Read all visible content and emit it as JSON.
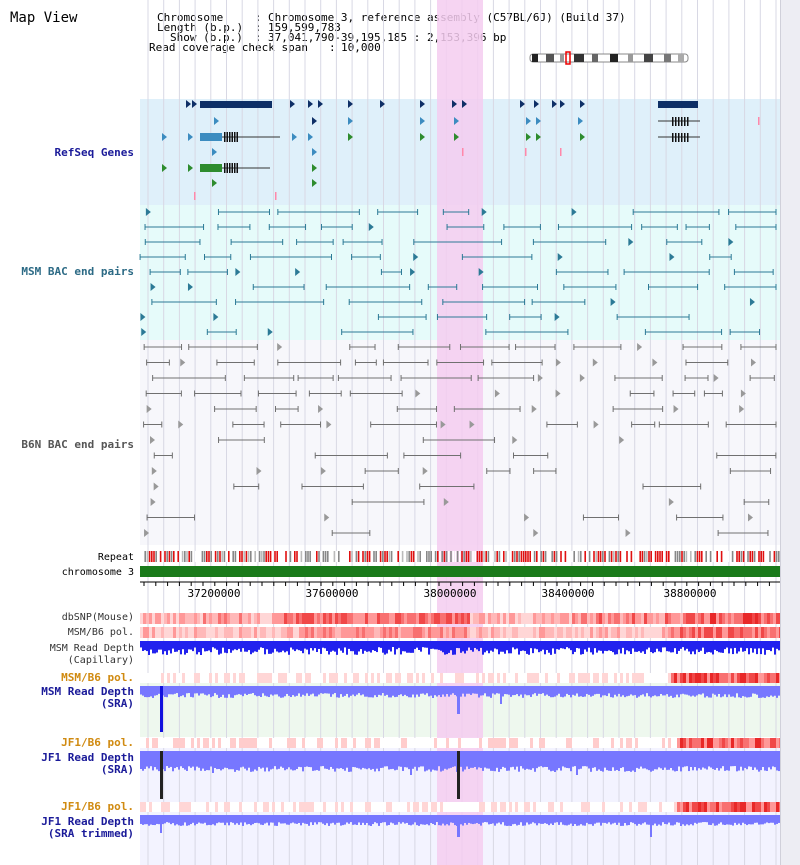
{
  "title": "Map View",
  "header": {
    "chromosome_key": "Chromosome",
    "chromosome_value": "Chromosome 3, reference assembly (C57BL/6J) (Build 37)",
    "length_key": "Length (b.p.)",
    "length_value": "159,599,783",
    "show_key": "Show (b.p.)",
    "show_value": "37,041,790-39,195,185 : 2,153,396 bp",
    "coverage_key": "Read coverage check span",
    "coverage_value": "10,000"
  },
  "tracks": {
    "refseq": "RefSeq Genes",
    "msm_bac": "MSM BAC end pairs",
    "b6n_bac": "B6N BAC end pairs",
    "repeat": "Repeat",
    "chromosome": "chromosome 3",
    "dbsnp": "dbSNP(Mouse)",
    "msm_b6_pol_1": "MSM/B6 pol.",
    "msm_depth_cap_1": "MSM Read Depth",
    "msm_depth_cap_2": "(Capillary)",
    "msm_b6_pol_2": "MSM/B6 pol.",
    "msm_depth_sra_1": "MSM Read Depth",
    "msm_depth_sra_2": "(SRA)",
    "jf1_b6_pol_1": "JF1/B6 pol.",
    "jf1_depth_sra_1": "JF1 Read Depth",
    "jf1_depth_sra_2": "(SRA)",
    "jf1_b6_pol_2": "JF1/B6 pol.",
    "jf1_depth_trim_1": "JF1 Read Depth",
    "jf1_depth_trim_2": "(SRA trimmed)"
  },
  "axis": {
    "ticks": [
      "37200000",
      "37600000",
      "38000000",
      "38400000",
      "38800000"
    ]
  },
  "colors": {
    "refseq_bg": "#dff0fa",
    "msm_bg": "#e6fbfa",
    "b6n_bg": "#f7f7fb",
    "highlight": "#f5cdf0",
    "chromosome": "#1a7a1a",
    "refseq_dark": "#0e2f66",
    "refseq_blue": "#3c8cc0",
    "refseq_green": "#2e8c2e",
    "msm_line": "#2c7a96",
    "b6n_line": "#707070",
    "depth_blue": "#2222ee",
    "depth_light": "#7777ff",
    "msm_label": "#1a1a99",
    "bac_label": "#2c6a85",
    "jf1_label": "#d08a10"
  }
}
